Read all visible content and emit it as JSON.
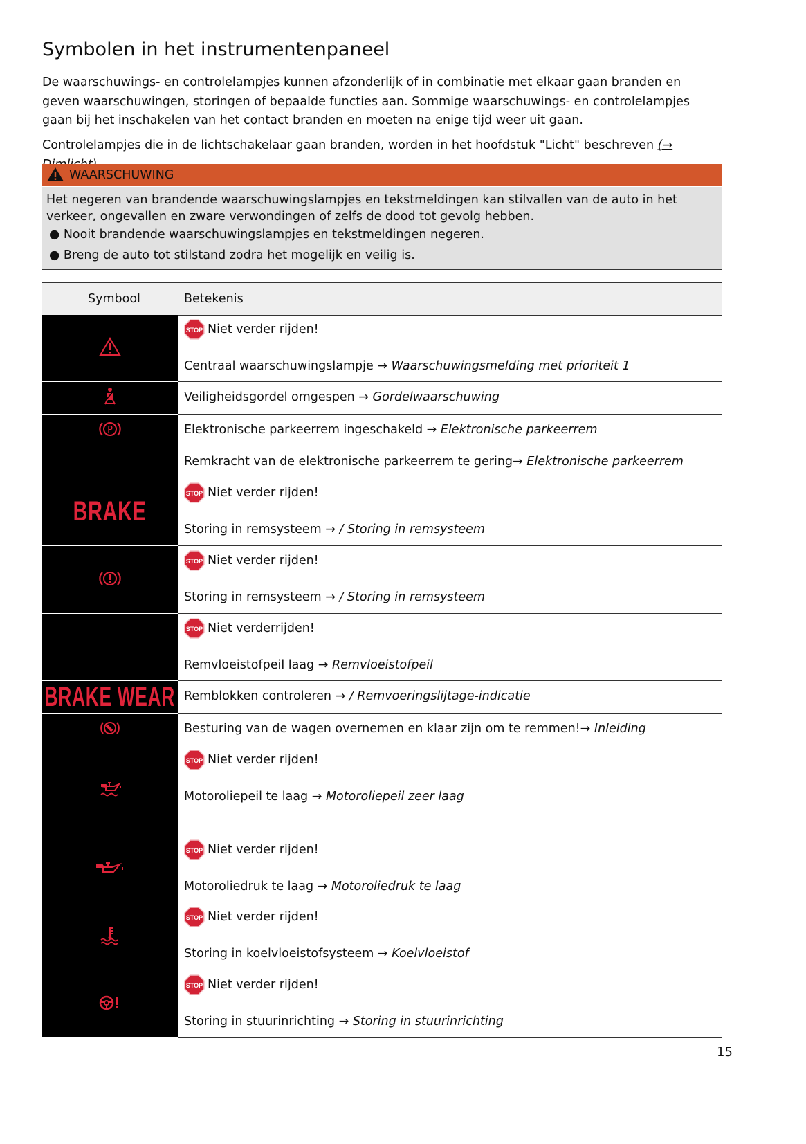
{
  "title": "Symbolen in het instrumentenpaneel",
  "intro": "De waarschuwings- en controlelampjes kunnen afzonderlijk of in combinatie met elkaar gaan branden en geven waarschuwingen, storingen of bepaalde functies aan. Sommige waarschuwings- en controlelampjes gaan bij het inschakelen van het contact branden en moeten na enige tijd weer uit gaan.",
  "intro2": "Controlelampjes die in de lichtschakelaar gaan branden, worden in het hoofdstuk \"Licht\" beschreven ",
  "intro2_link": "(→ Dimlicht)",
  "warning": {
    "label": "WAARSCHUWING",
    "text": "Het negeren van brandende waarschuwingslampjes en tekstmeldingen kan stilvallen van de auto in het verkeer, ongevallen en zware verwondingen of zelfs de dood tot gevolg hebben.",
    "bullets": [
      "Nooit brandende waarschuwingslampjes en tekstmeldingen negeren.",
      "Breng de auto tot stilstand zodra het mogelijk en veilig is."
    ],
    "color": "#d3572b"
  },
  "table": {
    "headers": [
      "Symbool",
      "Betekenis"
    ],
    "rows": [
      {
        "icon": "warning-triangle",
        "stop": "Niet verder rijden!",
        "text": "Centraal waarschuwingslampje → ",
        "link": "Waarschuwingsmelding met prioriteit 1"
      },
      {
        "icon": "seatbelt",
        "text": "Veiligheidsgordel omgespen →",
        "link": "Gordelwaarschuwing"
      },
      {
        "icon": "parking-brake",
        "text": "Elektronische parkeerrem ingeschakeld →",
        "link": "Elektronische parkeerrem"
      },
      {
        "icon": "",
        "text": "Remkracht van de elektronische parkeerrem te gering→",
        "link": "Elektronische parkeerrem"
      },
      {
        "icon": "brake-text",
        "label": "BRAKE",
        "stop": "Niet verder rijden!",
        "text": "Storing in remsysteem → ",
        "link": "/ Storing in remsysteem"
      },
      {
        "icon": "brake-circle",
        "stop": "Niet verder rijden!",
        "text": "Storing in remsysteem → ",
        "link": "/ Storing in remsysteem"
      },
      {
        "icon": "",
        "stop": "Niet verderrijden!",
        "text": "Remvloeistofpeil laag → ",
        "link": "Remvloeistofpeil"
      },
      {
        "icon": "brake-wear-text",
        "label": "BRAKE WEAR",
        "text": "Remblokken controleren → ",
        "link": "/ Remvoeringslijtage-indicatie"
      },
      {
        "icon": "steering-assist",
        "text": "Besturing van de wagen overnemen en klaar zijn om te remmen!→",
        "link": "Inleiding"
      },
      {
        "icon": "oil-level",
        "stop": "Niet verder rijden!",
        "text": "Motoroliepeil te laag → ",
        "link": "Motoroliepeil zeer laag"
      },
      {
        "icon": "oil-pressure",
        "stop": "Niet verder rijden!",
        "text": "Motoroliedruk te laag → ",
        "link": "Motoroliedruk te laag"
      },
      {
        "icon": "coolant",
        "stop": "Niet verder rijden!",
        "text": "Storing in koelvloeistofsysteem → ",
        "link": "Koelvloeistof"
      },
      {
        "icon": "steering-fault",
        "stop": "Niet verder rijden!",
        "text": "Storing in stuurinrichting → ",
        "link": "Storing in stuurinrichting"
      }
    ]
  },
  "stop_label": "STOP",
  "icon_color": "#e0243a",
  "page_number": "15"
}
